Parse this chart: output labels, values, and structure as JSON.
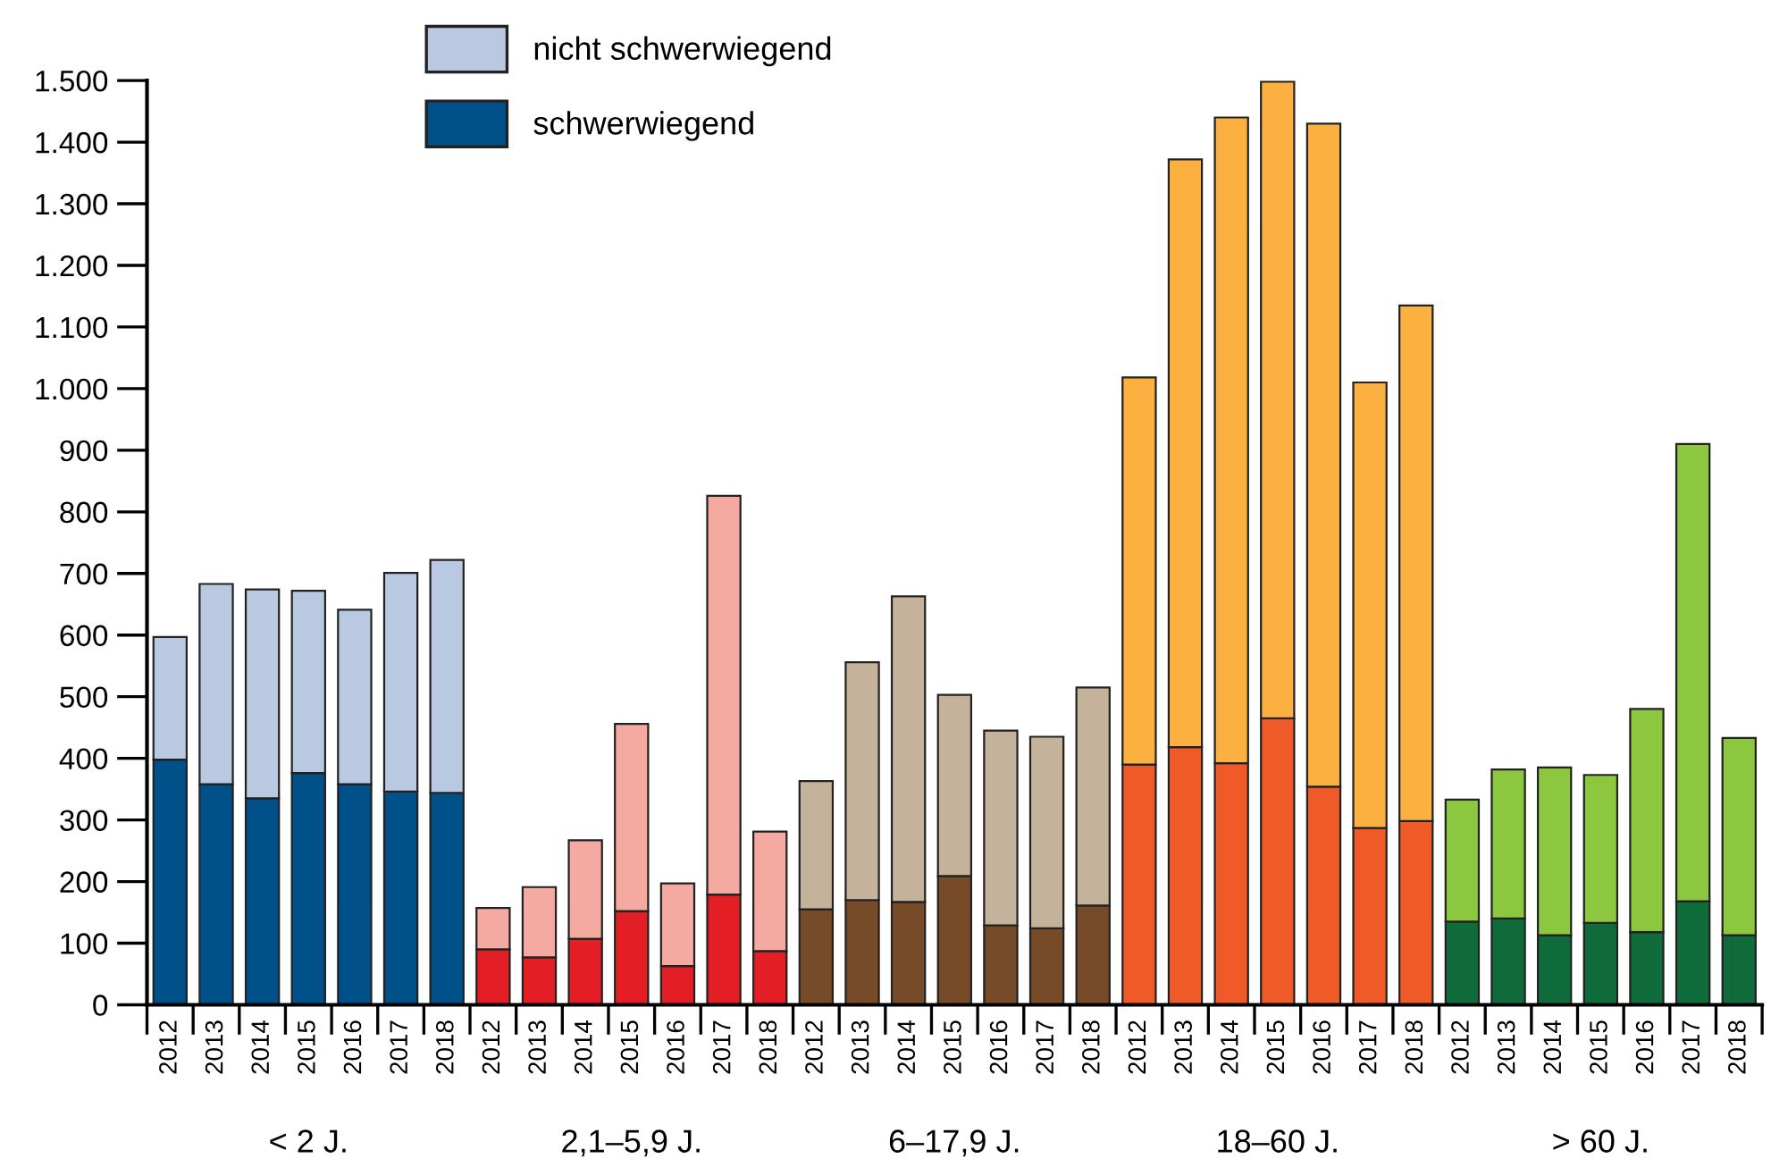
{
  "chart_data": {
    "type": "bar",
    "stacked": true,
    "categories": [
      "2012",
      "2013",
      "2014",
      "2015",
      "2016",
      "2017",
      "2018",
      "2012",
      "2013",
      "2014",
      "2015",
      "2016",
      "2017",
      "2018",
      "2012",
      "2013",
      "2014",
      "2015",
      "2016",
      "2017",
      "2018",
      "2012",
      "2013",
      "2014",
      "2015",
      "2016",
      "2017",
      "2018",
      "2012",
      "2013",
      "2014",
      "2015",
      "2016",
      "2017",
      "2018"
    ],
    "series": [
      {
        "name": "schwerwiegend",
        "color": "#00508a",
        "values": [
          398,
          358,
          335,
          376,
          358,
          346,
          344,
          90,
          77,
          107,
          152,
          63,
          179,
          87,
          155,
          170,
          167,
          209,
          129,
          124,
          161,
          390,
          418,
          392,
          465,
          354,
          287,
          298,
          135,
          140,
          113,
          133,
          118,
          168,
          113
        ],
        "colors": [
          "#00508a",
          "#00508a",
          "#00508a",
          "#00508a",
          "#00508a",
          "#00508a",
          "#00508a",
          "#e31e24",
          "#e31e24",
          "#e31e24",
          "#e31e24",
          "#e31e24",
          "#e31e24",
          "#e31e24",
          "#774b27",
          "#774b27",
          "#774b27",
          "#774b27",
          "#774b27",
          "#774b27",
          "#774b27",
          "#f05a28",
          "#f05a28",
          "#f05a28",
          "#f05a28",
          "#f05a28",
          "#f05a28",
          "#f05a28",
          "#0f6b3a",
          "#0f6b3a",
          "#0f6b3a",
          "#0f6b3a",
          "#0f6b3a",
          "#0f6b3a",
          "#0f6b3a"
        ]
      },
      {
        "name": "nicht schwerwiegend",
        "color": "#b8c9e1",
        "values": [
          199,
          325,
          339,
          296,
          283,
          355,
          378,
          67,
          114,
          160,
          304,
          134,
          647,
          194,
          208,
          386,
          496,
          294,
          316,
          311,
          354,
          628,
          954,
          1048,
          1033,
          1076,
          723,
          837,
          198,
          242,
          272,
          240,
          362,
          742,
          320
        ],
        "colors": [
          "#b8c9e1",
          "#b8c9e1",
          "#b8c9e1",
          "#b8c9e1",
          "#b8c9e1",
          "#b8c9e1",
          "#b8c9e1",
          "#f4aaa0",
          "#f4aaa0",
          "#f4aaa0",
          "#f4aaa0",
          "#f4aaa0",
          "#f4aaa0",
          "#f4aaa0",
          "#c4b39a",
          "#c4b39a",
          "#c4b39a",
          "#c4b39a",
          "#c4b39a",
          "#c4b39a",
          "#c4b39a",
          "#fbb040",
          "#fbb040",
          "#fbb040",
          "#fbb040",
          "#fbb040",
          "#fbb040",
          "#fbb040",
          "#8dc63f",
          "#8dc63f",
          "#8dc63f",
          "#8dc63f",
          "#8dc63f",
          "#8dc63f",
          "#8dc63f"
        ]
      }
    ],
    "ylim": [
      0,
      1500
    ],
    "yticks": [
      0,
      100,
      200,
      300,
      400,
      500,
      600,
      700,
      800,
      900,
      {
        "value": 1000,
        "label": "1.000"
      },
      {
        "value": 1100,
        "label": "1.100"
      },
      {
        "value": 1200,
        "label": "1.200"
      },
      {
        "value": 1300,
        "label": "1.300"
      },
      {
        "value": 1400,
        "label": "1.400"
      },
      {
        "value": 1500,
        "label": "1.500"
      }
    ],
    "grid": false,
    "legend": "top left",
    "annotations": [
      "< 2 J.",
      "2,1–5,9 J.",
      "6–17,9 J.",
      "18–60 J.",
      "> 60 J."
    ]
  }
}
